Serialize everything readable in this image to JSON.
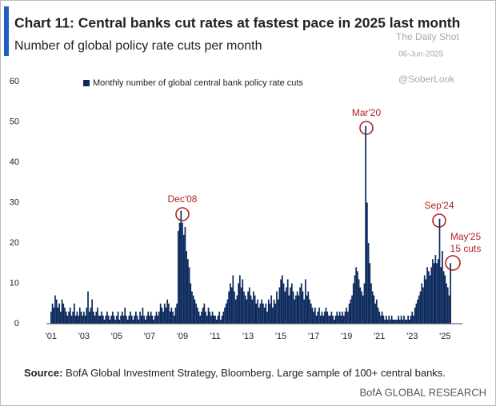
{
  "chart_data": {
    "type": "bar",
    "title": "Chart 11: Central banks cut rates at fastest pace in 2025 last month",
    "subtitle": "Number of global policy rate cuts per month",
    "watermarks": [
      "The Daily Shot",
      "06-Jun-2025",
      "@SoberLook"
    ],
    "annotations": [
      "Dec'08",
      "Mar'20",
      "Sep'24",
      "May'25",
      "15 cuts"
    ],
    "source_label": "Source:",
    "source": "BofA Global Investment Strategy, Bloomberg. Large sample of 100+ central banks.",
    "brand": "BofA GLOBAL RESEARCH",
    "legend": "upper left",
    "categories": [
      "'01",
      null,
      null,
      null,
      null,
      null,
      null,
      null,
      null,
      null,
      null,
      null,
      null,
      null,
      null,
      null,
      null,
      null,
      null,
      null,
      null,
      null,
      null,
      null,
      "'03",
      null,
      null,
      null,
      null,
      null,
      null,
      null,
      null,
      null,
      null,
      null,
      null,
      null,
      null,
      null,
      null,
      null,
      null,
      null,
      null,
      null,
      null,
      null,
      "'05",
      null,
      null,
      null,
      null,
      null,
      null,
      null,
      null,
      null,
      null,
      null,
      null,
      null,
      null,
      null,
      null,
      null,
      null,
      null,
      null,
      null,
      null,
      null,
      "'07",
      null,
      null,
      null,
      null,
      null,
      null,
      null,
      null,
      null,
      null,
      null,
      null,
      null,
      null,
      null,
      null,
      null,
      null,
      null,
      null,
      null,
      null,
      null,
      "'09",
      null,
      null,
      null,
      null,
      null,
      null,
      null,
      null,
      null,
      null,
      null,
      null,
      null,
      null,
      null,
      null,
      null,
      null,
      null,
      null,
      null,
      null,
      null,
      "'11",
      null,
      null,
      null,
      null,
      null,
      null,
      null,
      null,
      null,
      null,
      null,
      null,
      null,
      null,
      null,
      null,
      null,
      null,
      null,
      null,
      null,
      null,
      null,
      "'13",
      null,
      null,
      null,
      null,
      null,
      null,
      null,
      null,
      null,
      null,
      null,
      null,
      null,
      null,
      null,
      null,
      null,
      null,
      null,
      null,
      null,
      null,
      null,
      "'15",
      null,
      null,
      null,
      null,
      null,
      null,
      null,
      null,
      null,
      null,
      null,
      null,
      null,
      null,
      null,
      null,
      null,
      null,
      null,
      null,
      null,
      null,
      null,
      "'17",
      null,
      null,
      null,
      null,
      null,
      null,
      null,
      null,
      null,
      null,
      null,
      null,
      null,
      null,
      null,
      null,
      null,
      null,
      null,
      null,
      null,
      null,
      null,
      "'19",
      null,
      null,
      null,
      null,
      null,
      null,
      null,
      null,
      null,
      null,
      null,
      null,
      null,
      null,
      null,
      null,
      null,
      null,
      null,
      null,
      null,
      null,
      null,
      "'21",
      null,
      null,
      null,
      null,
      null,
      null,
      null,
      null,
      null,
      null,
      null,
      null,
      null,
      null,
      null,
      null,
      null,
      null,
      null,
      null,
      null,
      null,
      null,
      "'23",
      null,
      null,
      null,
      null,
      null,
      null,
      null,
      null,
      null,
      null,
      null,
      null,
      null,
      null,
      null,
      null,
      null,
      null,
      null,
      null,
      null,
      null,
      null,
      "'25",
      null,
      null,
      null,
      null
    ],
    "series": [
      {
        "name": "Monthly number of global central bank policy rate cuts",
        "color": "#0d2a5c",
        "values": [
          3,
          5,
          4,
          7,
          6,
          4,
          5,
          3,
          6,
          5,
          4,
          3,
          2,
          3,
          4,
          2,
          3,
          5,
          2,
          3,
          2,
          4,
          3,
          2,
          3,
          2,
          4,
          8,
          3,
          4,
          6,
          3,
          2,
          3,
          4,
          2,
          2,
          3,
          2,
          1,
          2,
          3,
          2,
          1,
          2,
          3,
          2,
          1,
          2,
          3,
          1,
          2,
          3,
          2,
          4,
          2,
          1,
          2,
          3,
          2,
          1,
          2,
          3,
          2,
          1,
          3,
          2,
          4,
          2,
          1,
          2,
          3,
          2,
          3,
          2,
          1,
          2,
          3,
          2,
          3,
          5,
          4,
          3,
          5,
          4,
          6,
          5,
          3,
          4,
          3,
          2,
          4,
          5,
          23,
          25,
          28,
          25,
          22,
          24,
          18,
          16,
          14,
          10,
          8,
          7,
          6,
          5,
          4,
          3,
          2,
          3,
          4,
          5,
          3,
          2,
          4,
          3,
          2,
          3,
          2,
          2,
          1,
          2,
          3,
          1,
          2,
          3,
          4,
          5,
          6,
          8,
          10,
          9,
          12,
          8,
          6,
          7,
          10,
          12,
          9,
          11,
          8,
          7,
          6,
          8,
          9,
          7,
          6,
          8,
          7,
          5,
          6,
          4,
          5,
          6,
          5,
          4,
          5,
          3,
          6,
          5,
          7,
          4,
          6,
          5,
          8,
          6,
          9,
          11,
          12,
          10,
          8,
          9,
          11,
          7,
          9,
          10,
          8,
          6,
          7,
          8,
          7,
          9,
          10,
          8,
          6,
          11,
          7,
          8,
          6,
          5,
          4,
          3,
          4,
          2,
          3,
          4,
          2,
          3,
          2,
          3,
          4,
          3,
          2,
          2,
          3,
          2,
          1,
          2,
          3,
          2,
          3,
          2,
          3,
          2,
          3,
          4,
          3,
          5,
          6,
          7,
          10,
          12,
          14,
          13,
          11,
          9,
          8,
          7,
          10,
          49,
          30,
          20,
          15,
          10,
          8,
          7,
          5,
          6,
          4,
          3,
          2,
          3,
          2,
          1,
          2,
          1,
          2,
          1,
          2,
          1,
          1,
          1,
          1,
          2,
          1,
          2,
          1,
          2,
          1,
          1,
          2,
          1,
          2,
          3,
          2,
          4,
          5,
          6,
          7,
          8,
          10,
          9,
          12,
          11,
          14,
          13,
          12,
          14,
          16,
          15,
          17,
          15,
          16,
          26,
          14,
          18,
          13,
          12,
          10,
          9,
          7,
          15
        ]
      }
    ],
    "ylim": [
      0,
      60
    ],
    "yticks": [
      0,
      10,
      20,
      30,
      40,
      50,
      60
    ],
    "grid": false
  }
}
